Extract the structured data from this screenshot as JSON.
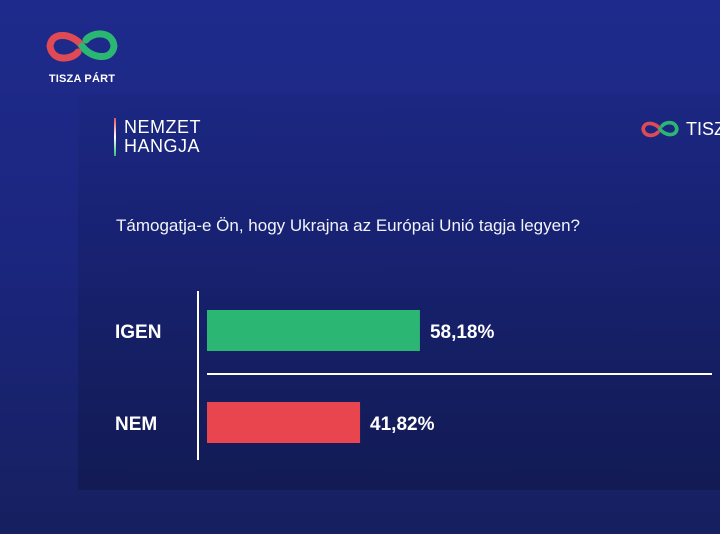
{
  "brand": {
    "top_logo_text": "TISZA PÁRT",
    "right_logo_text": "TISZ"
  },
  "show": {
    "line1": "NEMZET",
    "line2": "HANGJA"
  },
  "colors": {
    "background": "#1f2b8c",
    "yes": "#2bb673",
    "no": "#e8454f"
  },
  "chart_data": {
    "type": "bar",
    "orientation": "horizontal",
    "title": "Támogatja-e Ön, hogy Ukrajna az Európai Unió tagja legyen?",
    "categories": [
      "IGEN",
      "NEM"
    ],
    "values": [
      58.18,
      41.82
    ],
    "value_labels": [
      "58,18%",
      "41,82%"
    ],
    "unit": "%",
    "bar_colors": [
      "#2bb673",
      "#e8454f"
    ],
    "xlim": [
      0,
      100
    ],
    "grid": false
  }
}
